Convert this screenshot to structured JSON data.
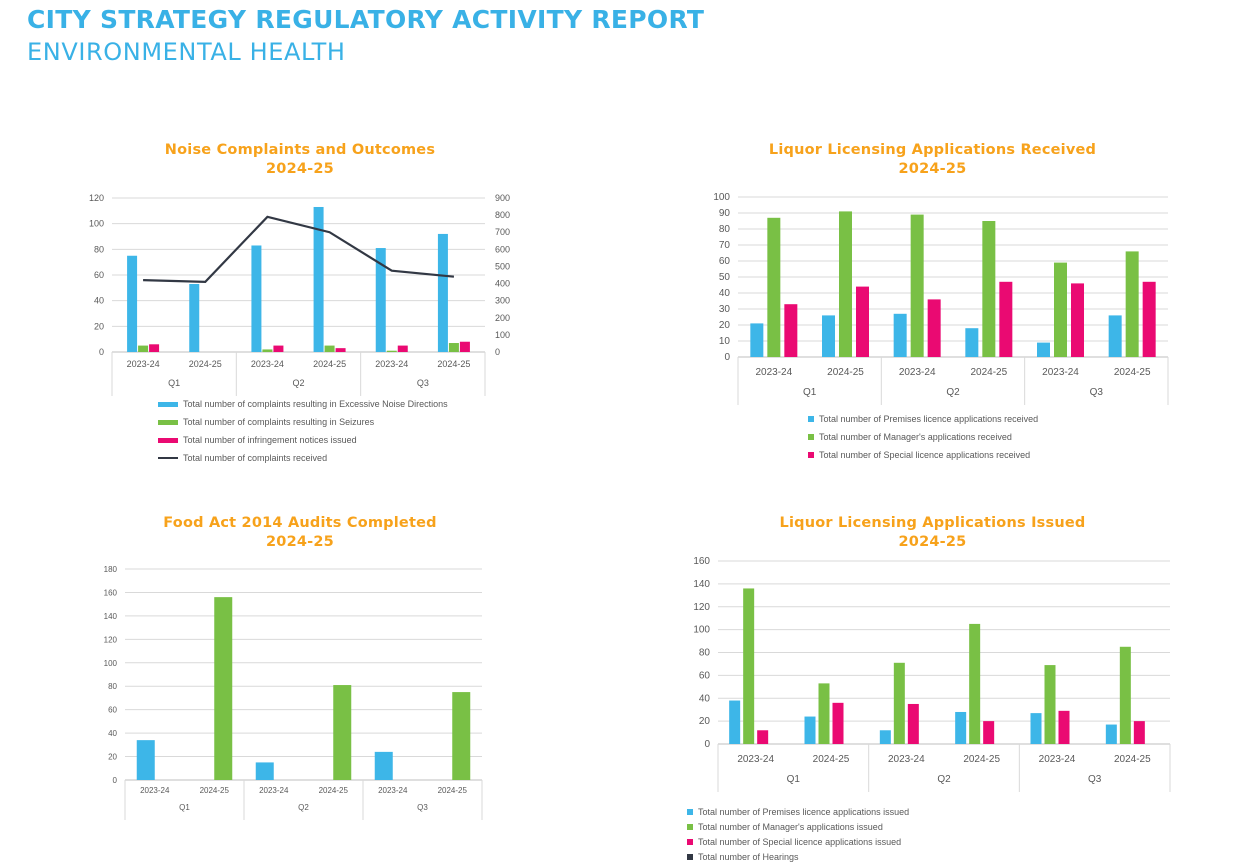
{
  "header": {
    "title": "CITY STRATEGY REGULATORY ACTIVITY REPORT",
    "subtitle": "ENVIRONMENTAL HEALTH"
  },
  "chart_data": [
    {
      "id": "noise",
      "type": "bar",
      "title": [
        "Noise Complaints and Outcomes",
        "2024-25"
      ],
      "groups": [
        "Q1",
        "Q2",
        "Q3"
      ],
      "categories": [
        "2023-24",
        "2024-25",
        "2023-24",
        "2024-25",
        "2023-24",
        "2024-25"
      ],
      "ylim": [
        0,
        120
      ],
      "yticks": [
        0,
        20,
        40,
        60,
        80,
        100,
        120
      ],
      "y2lim": [
        0,
        900
      ],
      "y2ticks": [
        0,
        100,
        200,
        300,
        400,
        500,
        600,
        700,
        800,
        900
      ],
      "series": [
        {
          "name": "Total number of complaints resulting in Excessive Noise Directions",
          "color": "#3db6e8",
          "values": [
            75,
            53,
            83,
            113,
            81,
            92
          ]
        },
        {
          "name": "Total number of complaints resulting in Seizures",
          "color": "#79c045",
          "values": [
            5,
            0,
            2,
            5,
            1,
            7
          ]
        },
        {
          "name": "Total number of infringement notices issued",
          "color": "#ea0a72",
          "values": [
            6,
            0,
            5,
            3,
            5,
            8
          ]
        },
        {
          "name": "Total number of complaints received",
          "color": "#323844",
          "type": "line",
          "axis": "secondary",
          "values": [
            420,
            410,
            790,
            700,
            475,
            440
          ]
        }
      ]
    },
    {
      "id": "liquor_received",
      "type": "bar",
      "title": [
        "Liquor Licensing Applications Received",
        "2024-25"
      ],
      "groups": [
        "Q1",
        "Q2",
        "Q3"
      ],
      "categories": [
        "2023-24",
        "2024-25",
        "2023-24",
        "2024-25",
        "2023-24",
        "2024-25"
      ],
      "ylim": [
        0,
        100
      ],
      "yticks": [
        0,
        10,
        20,
        30,
        40,
        50,
        60,
        70,
        80,
        90,
        100
      ],
      "series": [
        {
          "name": "Total number of Premises licence applications received",
          "color": "#3db6e8",
          "values": [
            21,
            26,
            27,
            18,
            9,
            26
          ]
        },
        {
          "name": "Total number of Manager's applications received",
          "color": "#79c045",
          "values": [
            87,
            91,
            89,
            85,
            59,
            66
          ]
        },
        {
          "name": "Total number of Special licence applications received",
          "color": "#ea0a72",
          "values": [
            33,
            44,
            36,
            47,
            46,
            47
          ]
        }
      ]
    },
    {
      "id": "food",
      "type": "bar",
      "title": [
        "Food Act 2014 Audits Completed",
        "2024-25"
      ],
      "groups": [
        "Q1",
        "Q2",
        "Q3"
      ],
      "categories": [
        "2023-24",
        "2024-25",
        "2023-24",
        "2024-25",
        "2023-24",
        "2024-25"
      ],
      "ylim": [
        0,
        180
      ],
      "yticks": [
        0,
        20,
        40,
        60,
        80,
        100,
        120,
        140,
        160,
        180
      ],
      "series": [
        {
          "color": "#3db6e8",
          "values": [
            34,
            0,
            15,
            0,
            24,
            0
          ]
        },
        {
          "color": "#79c045",
          "values": [
            0,
            156,
            0,
            81,
            0,
            75
          ]
        }
      ]
    },
    {
      "id": "liquor_issued",
      "type": "bar",
      "title": [
        "Liquor Licensing Applications Issued",
        "2024-25"
      ],
      "groups": [
        "Q1",
        "Q2",
        "Q3"
      ],
      "categories": [
        "2023-24",
        "2024-25",
        "2023-24",
        "2024-25",
        "2023-24",
        "2024-25"
      ],
      "ylim": [
        0,
        160
      ],
      "yticks": [
        0,
        20,
        40,
        60,
        80,
        100,
        120,
        140,
        160
      ],
      "series": [
        {
          "name": "Total number of Premises licence applications issued",
          "color": "#3db6e8",
          "values": [
            38,
            24,
            12,
            28,
            27,
            17
          ]
        },
        {
          "name": "Total number of Manager's applications issued",
          "color": "#79c045",
          "values": [
            136,
            53,
            71,
            105,
            69,
            85
          ]
        },
        {
          "name": "Total number of Special licence applications issued",
          "color": "#ea0a72",
          "values": [
            12,
            36,
            35,
            20,
            29,
            20
          ]
        },
        {
          "name": "Total number of Hearings",
          "color": "#323844",
          "values": [
            0,
            0,
            0,
            0,
            0,
            0
          ]
        }
      ]
    }
  ]
}
